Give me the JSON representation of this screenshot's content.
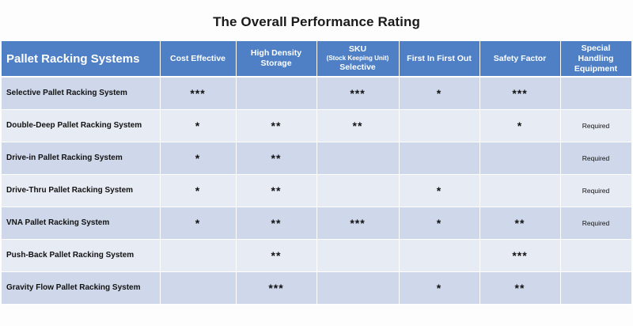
{
  "title": "The Overall Performance Rating",
  "table": {
    "headers": {
      "system": "Pallet Racking Systems",
      "cost": "Cost Effective",
      "density": "High Density Storage",
      "sku_top": "SKU",
      "sku_sub": "(Stock Keeping Unit)",
      "sku_bottom": "Selective",
      "fifo": "First In First Out",
      "safety": "Safety Factor",
      "special": "Special Handling Equipment"
    },
    "rows": [
      {
        "name": "Selective Pallet Racking System",
        "cost": "***",
        "density": "",
        "sku": "***",
        "fifo": "*",
        "safety": "***",
        "special": ""
      },
      {
        "name": "Double-Deep Pallet Racking System",
        "cost": "*",
        "density": "**",
        "sku": "**",
        "fifo": "",
        "safety": "*",
        "special": "Required"
      },
      {
        "name": "Drive-in Pallet Racking System",
        "cost": "*",
        "density": "**",
        "sku": "",
        "fifo": "",
        "safety": "",
        "special": "Required"
      },
      {
        "name": "Drive-Thru Pallet Racking System",
        "cost": "*",
        "density": "**",
        "sku": "",
        "fifo": "*",
        "safety": "",
        "special": "Required"
      },
      {
        "name": "VNA Pallet Racking System",
        "cost": "*",
        "density": "**",
        "sku": "***",
        "fifo": "*",
        "safety": "**",
        "special": "Required"
      },
      {
        "name": "Push-Back Pallet Racking System",
        "cost": "",
        "density": "**",
        "sku": "",
        "fifo": "",
        "safety": "***",
        "special": ""
      },
      {
        "name": "Gravity Flow Pallet Racking System",
        "cost": "",
        "density": "***",
        "sku": "",
        "fifo": "*",
        "safety": "**",
        "special": ""
      }
    ]
  }
}
